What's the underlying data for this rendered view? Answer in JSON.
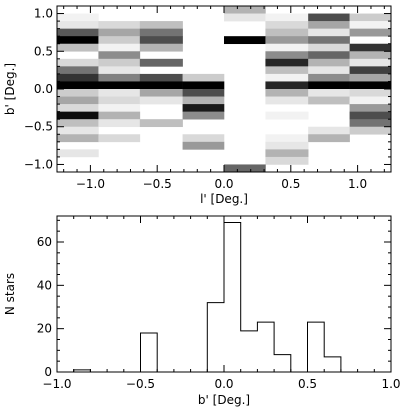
{
  "chart_data": [
    {
      "type": "heatmap",
      "xlabel": "l' [Deg.]",
      "ylabel": "b' [Deg.]",
      "xlim": [
        -1.25,
        1.25
      ],
      "ylim": [
        -1.1,
        1.1
      ],
      "xticks": [
        -1.0,
        -0.5,
        0.0,
        0.5,
        1.0
      ],
      "xtick_labels": [
        "−1.0",
        "−0.5",
        "0.0",
        "0.5",
        "1.0"
      ],
      "yticks": [
        -1.0,
        -0.5,
        0.0,
        0.5,
        1.0
      ],
      "ytick_labels": [
        "−1.0",
        "−0.5",
        "0.0",
        "0.5",
        "1.0"
      ],
      "colormap": "white-to-black (grayscale, darker = higher)",
      "x_bin_edges": [
        -1.25,
        -0.94,
        -0.63,
        -0.31,
        0.0,
        0.31,
        0.63,
        0.94,
        1.25
      ],
      "y_bin_edges": [
        -1.1,
        -1.0,
        -0.9,
        -0.8,
        -0.7,
        -0.6,
        -0.5,
        -0.4,
        -0.3,
        -0.2,
        -0.1,
        0.0,
        0.1,
        0.2,
        0.3,
        0.4,
        0.5,
        0.6,
        0.7,
        0.8,
        0.9,
        1.0,
        1.1
      ],
      "density_rows_top_to_bottom": [
        [
          0.0,
          0.0,
          0.0,
          0.0,
          0.3,
          0.0,
          0.0,
          0.0
        ],
        [
          0.05,
          0.0,
          0.0,
          0.0,
          0.1,
          0.05,
          0.7,
          0.2
        ],
        [
          0.1,
          0.15,
          0.25,
          0.0,
          0.0,
          0.15,
          0.35,
          0.05
        ],
        [
          0.65,
          0.35,
          0.55,
          0.0,
          0.0,
          0.25,
          0.1,
          0.4
        ],
        [
          1.0,
          0.2,
          0.7,
          0.0,
          1.0,
          0.4,
          0.55,
          0.0
        ],
        [
          0.25,
          0.05,
          0.3,
          0.0,
          0.0,
          0.05,
          0.15,
          0.8
        ],
        [
          0.0,
          0.45,
          0.0,
          0.0,
          0.0,
          0.45,
          0.6,
          0.3
        ],
        [
          0.15,
          0.2,
          0.6,
          0.0,
          0.0,
          0.85,
          0.3,
          0.1
        ],
        [
          0.55,
          0.1,
          0.0,
          0.0,
          0.0,
          0.25,
          0.1,
          0.75
        ],
        [
          0.8,
          0.5,
          0.7,
          0.2,
          0.0,
          0.05,
          0.45,
          0.35
        ],
        [
          1.0,
          1.0,
          1.0,
          1.0,
          0.0,
          0.85,
          1.0,
          1.0
        ],
        [
          0.2,
          0.1,
          0.35,
          0.7,
          0.0,
          0.3,
          0.1,
          0.15
        ],
        [
          0.35,
          0.15,
          0.1,
          0.3,
          0.0,
          0.1,
          0.25,
          0.05
        ],
        [
          0.15,
          0.05,
          0.0,
          0.9,
          0.0,
          0.0,
          0.0,
          0.4
        ],
        [
          0.95,
          0.3,
          0.0,
          0.45,
          0.0,
          0.05,
          0.0,
          0.7
        ],
        [
          0.25,
          0.1,
          0.25,
          0.0,
          0.0,
          0.0,
          0.0,
          0.55
        ],
        [
          0.1,
          0.0,
          0.0,
          0.0,
          0.0,
          0.0,
          0.1,
          0.2
        ],
        [
          0.3,
          0.15,
          0.0,
          0.15,
          0.0,
          0.05,
          0.3,
          0.0
        ],
        [
          0.0,
          0.0,
          0.0,
          0.4,
          0.0,
          0.1,
          0.0,
          0.0
        ],
        [
          0.1,
          0.0,
          0.0,
          0.0,
          0.0,
          0.3,
          0.0,
          0.0
        ],
        [
          0.0,
          0.0,
          0.0,
          0.0,
          0.0,
          0.15,
          0.0,
          0.0
        ],
        [
          0.0,
          0.0,
          0.0,
          0.0,
          0.6,
          0.0,
          0.0,
          0.0
        ]
      ]
    },
    {
      "type": "bar",
      "style": "histogram-step",
      "xlabel": "b' [Deg.]",
      "ylabel": "N stars",
      "xlim": [
        -1.0,
        1.0
      ],
      "ylim": [
        0,
        72
      ],
      "xticks": [
        -1.0,
        -0.5,
        0.0,
        0.5,
        1.0
      ],
      "xtick_labels": [
        "−1.0",
        "−0.5",
        "0.0",
        "0.5",
        "1.0"
      ],
      "yticks": [
        0,
        20,
        40,
        60
      ],
      "ytick_labels": [
        "0",
        "20",
        "40",
        "60"
      ],
      "bin_edges": [
        -0.9,
        -0.8,
        -0.7,
        -0.6,
        -0.5,
        -0.4,
        -0.3,
        -0.2,
        -0.1,
        0.0,
        0.1,
        0.2,
        0.3,
        0.4,
        0.5,
        0.6,
        0.7
      ],
      "counts": [
        1,
        0,
        0,
        0,
        18,
        0,
        0,
        0,
        32,
        69,
        19,
        23,
        8,
        0,
        23,
        7
      ]
    }
  ]
}
